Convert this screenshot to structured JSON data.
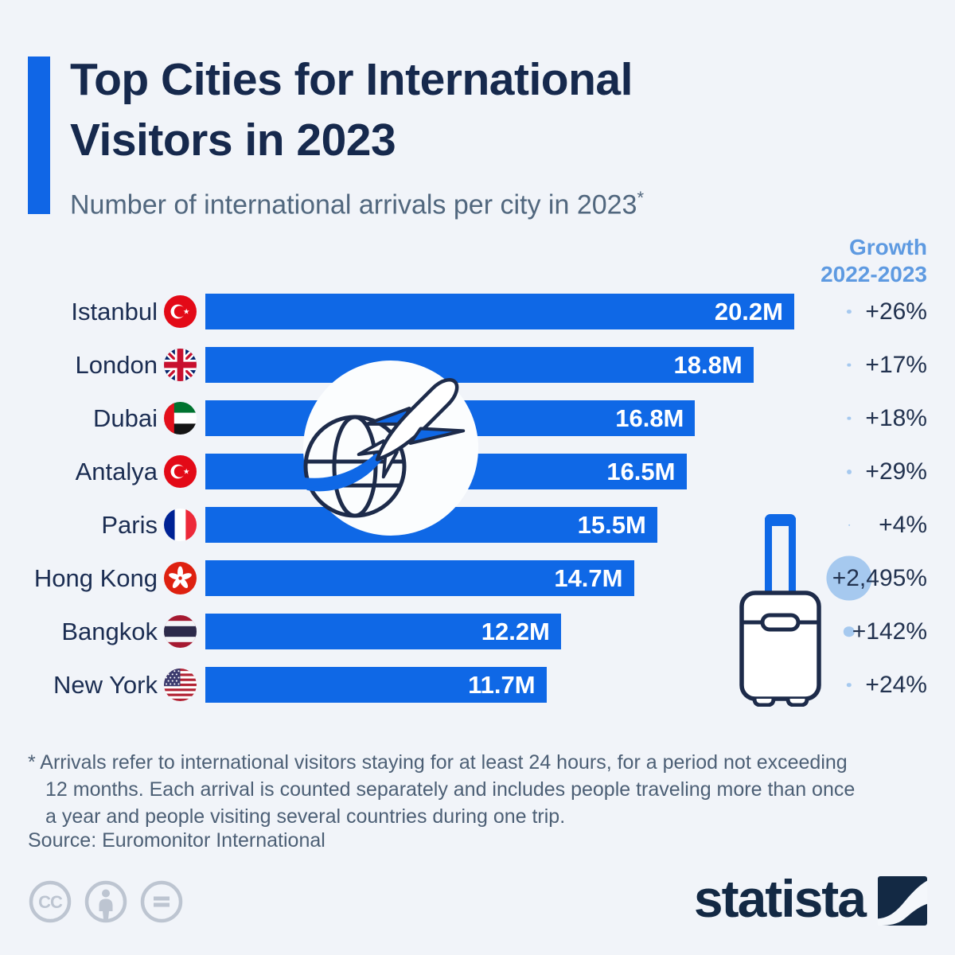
{
  "header": {
    "title_line1": "Top Cities for International",
    "title_line2": "Visitors in 2023",
    "subtitle": "Number of international arrivals per city in 2023",
    "subtitle_footnote_marker": "*"
  },
  "growth_header": {
    "line1": "Growth",
    "line2": "2022-2023"
  },
  "chart_data": {
    "type": "bar",
    "orientation": "horizontal",
    "title": "Top Cities for International Visitors in 2023",
    "subtitle": "Number of international arrivals per city in 2023*",
    "unit": "million arrivals",
    "xlim": [
      0,
      20.2
    ],
    "grid": false,
    "categories": [
      "Istanbul",
      "London",
      "Dubai",
      "Antalya",
      "Paris",
      "Hong Kong",
      "Bangkok",
      "New York"
    ],
    "values": [
      20.2,
      18.8,
      16.8,
      16.5,
      15.5,
      14.7,
      12.2,
      11.7
    ],
    "value_labels": [
      "20.2M",
      "18.8M",
      "16.8M",
      "16.5M",
      "15.5M",
      "14.7M",
      "12.2M",
      "11.7M"
    ],
    "flags": [
      "turkey",
      "united-kingdom",
      "uae",
      "turkey",
      "france",
      "hong-kong",
      "thailand",
      "united-states"
    ],
    "growth": {
      "header": "Growth 2022-2023",
      "values": [
        26,
        17,
        18,
        29,
        4,
        2495,
        142,
        24
      ],
      "labels": [
        "+26%",
        "+17%",
        "+18%",
        "+29%",
        "+4%",
        "+2,495%",
        "+142%",
        "+24%"
      ]
    },
    "bar_color": "#0f68e6",
    "dot_color": "#a6c9ef"
  },
  "footnote": {
    "line1": "* Arrivals refer to international visitors staying for at least 24 hours, for a period not exceeding",
    "line2": "12 months. Each arrival is counted separately and includes people traveling more than once",
    "line3": "a year and people visiting several countries during one trip."
  },
  "source": "Source: Euromonitor International",
  "branding": {
    "wordmark": "statista"
  },
  "colors": {
    "background": "#f1f4f9",
    "accent_blue": "#1066e6",
    "bar_blue": "#0f68e6",
    "title_navy": "#16294d",
    "subtitle_gray": "#51677e",
    "growth_header_blue": "#5e9ae1",
    "dot_blue": "#a6c9ef",
    "license_gray": "#bdc5d1",
    "logo_navy": "#132944"
  }
}
